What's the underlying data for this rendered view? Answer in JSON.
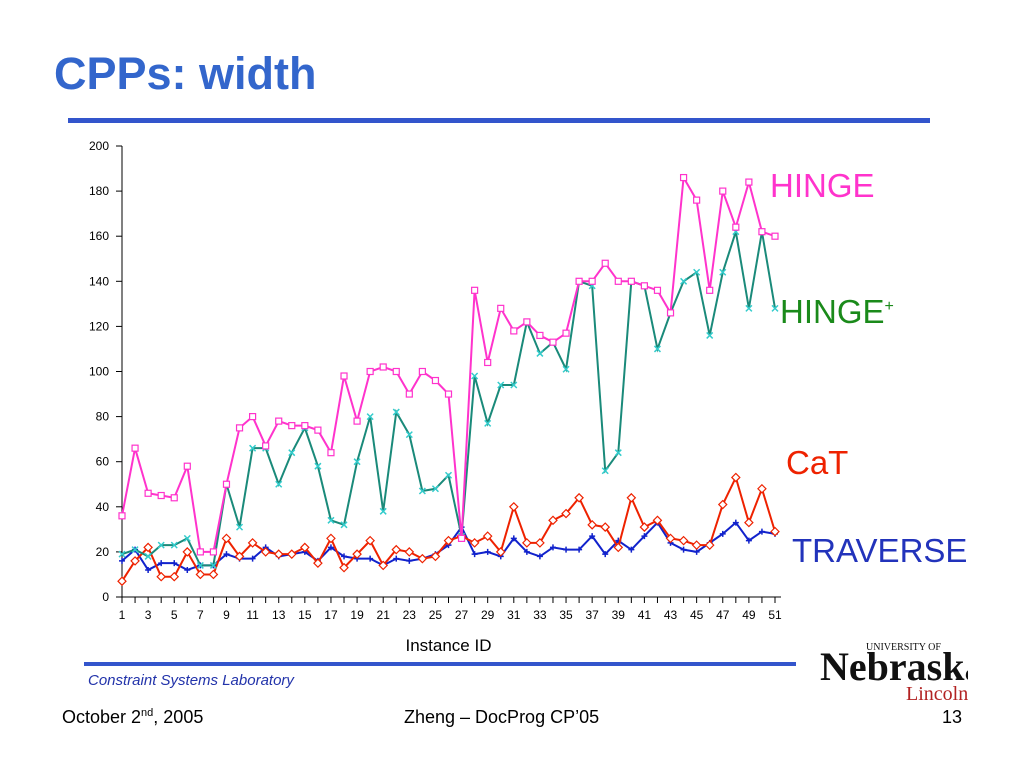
{
  "slide": {
    "title": "CPPs: width",
    "lab": "Constraint Systems Laboratory",
    "footer_date_prefix": "October 2",
    "footer_date_sup": "nd",
    "footer_date_suffix": ", 2005",
    "footer_center": "Zheng – DocProg CP’05",
    "page_number": "13"
  },
  "logo": {
    "top": "UNIVERSITY OF",
    "name": "Nebraska",
    "city": "Lincoln"
  },
  "labels": {
    "hinge": "HINGE",
    "hingeplus": "HINGE",
    "hingeplus_sup": "+",
    "cat": "CaT",
    "traverse": "TRAVERSE"
  },
  "colors": {
    "title": "#3366cc",
    "hinge": "#ff33cc",
    "hingeplus_line": "#1a8a7a",
    "hingeplus_marker": "#33cccc",
    "hingeplus_label": "#1a8a1a",
    "cat": "#ee2200",
    "traverse": "#1122cc"
  },
  "chart_data": {
    "type": "line",
    "xlabel": "Instance ID",
    "ylabel": "",
    "ylim": [
      0,
      200
    ],
    "yticks": [
      0,
      20,
      40,
      60,
      80,
      100,
      120,
      140,
      160,
      180,
      200
    ],
    "x": [
      1,
      2,
      3,
      4,
      5,
      6,
      7,
      8,
      9,
      10,
      11,
      12,
      13,
      14,
      15,
      16,
      17,
      18,
      19,
      20,
      21,
      22,
      23,
      24,
      25,
      26,
      27,
      28,
      29,
      30,
      31,
      32,
      33,
      34,
      35,
      36,
      37,
      38,
      39,
      40,
      41,
      42,
      43,
      44,
      45,
      46,
      47,
      48,
      49,
      50,
      51
    ],
    "xtick_labels": [
      1,
      3,
      5,
      7,
      9,
      11,
      13,
      15,
      17,
      19,
      21,
      23,
      25,
      27,
      29,
      31,
      33,
      35,
      37,
      39,
      41,
      43,
      45,
      47,
      49,
      51
    ],
    "grid": false,
    "legend": "labels at right of plot",
    "series": [
      {
        "name": "HINGE",
        "key": "hinge",
        "marker": "square",
        "values": [
          36,
          66,
          46,
          45,
          44,
          58,
          20,
          20,
          50,
          75,
          80,
          67,
          78,
          76,
          76,
          74,
          64,
          98,
          78,
          100,
          102,
          100,
          90,
          100,
          96,
          90,
          26,
          136,
          104,
          128,
          118,
          122,
          116,
          113,
          117,
          140,
          140,
          148,
          140,
          140,
          138,
          136,
          126,
          186,
          176,
          136,
          180,
          164,
          184,
          162,
          160
        ]
      },
      {
        "name": "HINGE+",
        "key": "hingeplus",
        "marker": "x",
        "values": [
          19,
          21,
          18,
          23,
          23,
          26,
          14,
          14,
          50,
          31,
          66,
          66,
          50,
          64,
          75,
          58,
          34,
          32,
          60,
          80,
          38,
          82,
          72,
          47,
          48,
          54,
          27,
          98,
          77,
          94,
          94,
          122,
          108,
          113,
          101,
          140,
          138,
          56,
          64,
          140,
          138,
          110,
          126,
          140,
          144,
          116,
          144,
          162,
          128,
          162,
          128
        ]
      },
      {
        "name": "CaT",
        "key": "cat",
        "marker": "diamond",
        "values": [
          7,
          16,
          22,
          9,
          9,
          20,
          10,
          10,
          26,
          18,
          24,
          20,
          19,
          19,
          22,
          15,
          26,
          13,
          19,
          25,
          14,
          21,
          20,
          17,
          18,
          25,
          27,
          24,
          27,
          20,
          40,
          24,
          24,
          34,
          37,
          44,
          32,
          31,
          22,
          44,
          31,
          34,
          26,
          25,
          23,
          23,
          41,
          53,
          33,
          48,
          29
        ]
      },
      {
        "name": "TRAVERSE",
        "key": "traverse",
        "marker": "plus",
        "values": [
          16,
          21,
          12,
          15,
          15,
          12,
          14,
          14,
          19,
          17,
          17,
          22,
          18,
          19,
          20,
          16,
          22,
          18,
          17,
          17,
          14,
          17,
          16,
          17,
          19,
          23,
          31,
          19,
          20,
          18,
          26,
          20,
          18,
          22,
          21,
          21,
          27,
          19,
          25,
          21,
          27,
          33,
          24,
          21,
          20,
          24,
          28,
          33,
          25,
          29,
          28
        ]
      }
    ]
  }
}
